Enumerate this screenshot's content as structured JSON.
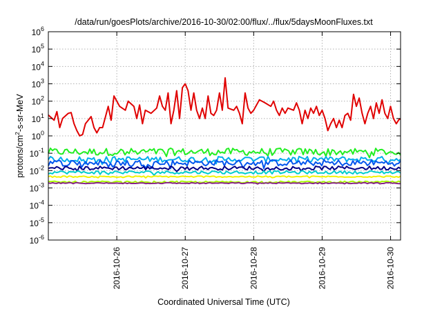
{
  "chart_data": {
    "type": "line",
    "title": "/data/run/goesPlots/archive/2016-10-30/02:00/flux/../flux/5daysMoonFluxes.txt",
    "xlabel": "Coordinated Universal Time (UTC)",
    "ylabel_parts": [
      "protons/cm",
      "2",
      "-s-sr-MeV"
    ],
    "y_scale": "log",
    "ylim_exponents": [
      -6,
      6
    ],
    "ytick_exponents": [
      -6,
      -5,
      -4,
      -3,
      -2,
      -1,
      0,
      1,
      2,
      3,
      4,
      5,
      6
    ],
    "ytick_base": "10",
    "xlim": [
      "2016-10-25T00:00",
      "2016-10-30T03:30"
    ],
    "xticks": [
      "2016-10-26",
      "2016-10-27",
      "2016-10-28",
      "2016-10-29",
      "2016-10-30"
    ],
    "grid": true,
    "legend": "none",
    "series": [
      {
        "color": "#e00000",
        "level": 20,
        "spread": 1.0,
        "points": [
          [
            "2016-10-25T00:00",
            16
          ],
          [
            "2016-10-25T02:00",
            8
          ],
          [
            "2016-10-25T03:00",
            25
          ],
          [
            "2016-10-25T04:00",
            3
          ],
          [
            "2016-10-25T05:00",
            10
          ],
          [
            "2016-10-25T07:00",
            20
          ],
          [
            "2016-10-25T08:00",
            22
          ],
          [
            "2016-10-25T09:00",
            5
          ],
          [
            "2016-10-25T10:00",
            2
          ],
          [
            "2016-10-25T11:00",
            1
          ],
          [
            "2016-10-25T12:00",
            1.2
          ],
          [
            "2016-10-25T13:00",
            5
          ],
          [
            "2016-10-25T15:00",
            13
          ],
          [
            "2016-10-25T16:00",
            3
          ],
          [
            "2016-10-25T17:00",
            1.5
          ],
          [
            "2016-10-25T18:00",
            3
          ],
          [
            "2016-10-25T19:00",
            3
          ],
          [
            "2016-10-25T20:00",
            12
          ],
          [
            "2016-10-25T21:00",
            50
          ],
          [
            "2016-10-25T22:00",
            8
          ],
          [
            "2016-10-25T23:00",
            200
          ],
          [
            "2016-10-26T01:00",
            50
          ],
          [
            "2016-10-26T03:00",
            30
          ],
          [
            "2016-10-26T04:00",
            100
          ],
          [
            "2016-10-26T06:00",
            50
          ],
          [
            "2016-10-26T07:00",
            10
          ],
          [
            "2016-10-26T08:00",
            60
          ],
          [
            "2016-10-26T09:00",
            5
          ],
          [
            "2016-10-26T10:00",
            30
          ],
          [
            "2016-10-26T12:00",
            20
          ],
          [
            "2016-10-26T14:00",
            40
          ],
          [
            "2016-10-26T15:00",
            200
          ],
          [
            "2016-10-26T16:00",
            50
          ],
          [
            "2016-10-26T17:00",
            30
          ],
          [
            "2016-10-26T18:00",
            300
          ],
          [
            "2016-10-26T19:00",
            5
          ],
          [
            "2016-10-26T20:00",
            30
          ],
          [
            "2016-10-26T21:00",
            400
          ],
          [
            "2016-10-26T22:00",
            10
          ],
          [
            "2016-10-26T23:00",
            600
          ],
          [
            "2016-10-27T00:00",
            1000
          ],
          [
            "2016-10-27T01:00",
            400
          ],
          [
            "2016-10-27T02:00",
            30
          ],
          [
            "2016-10-27T03:00",
            300
          ],
          [
            "2016-10-27T04:00",
            30
          ],
          [
            "2016-10-27T05:00",
            10
          ],
          [
            "2016-10-27T06:00",
            40
          ],
          [
            "2016-10-27T07:00",
            10
          ],
          [
            "2016-10-27T08:00",
            200
          ],
          [
            "2016-10-27T09:00",
            20
          ],
          [
            "2016-10-27T10:00",
            15
          ],
          [
            "2016-10-27T11:00",
            30
          ],
          [
            "2016-10-27T12:00",
            300
          ],
          [
            "2016-10-27T13:00",
            30
          ],
          [
            "2016-10-27T14:00",
            2200
          ],
          [
            "2016-10-27T15:00",
            40
          ],
          [
            "2016-10-27T17:00",
            30
          ],
          [
            "2016-10-27T18:00",
            50
          ],
          [
            "2016-10-27T19:00",
            20
          ],
          [
            "2016-10-27T20:00",
            5
          ],
          [
            "2016-10-27T21:00",
            300
          ],
          [
            "2016-10-27T22:00",
            40
          ],
          [
            "2016-10-27T23:00",
            20
          ],
          [
            "2016-10-28T00:00",
            30
          ],
          [
            "2016-10-28T02:00",
            120
          ],
          [
            "2016-10-28T04:00",
            80
          ],
          [
            "2016-10-28T06:00",
            50
          ],
          [
            "2016-10-28T07:00",
            100
          ],
          [
            "2016-10-28T08:00",
            30
          ],
          [
            "2016-10-28T09:00",
            15
          ],
          [
            "2016-10-28T10:00",
            40
          ],
          [
            "2016-10-28T11:00",
            20
          ],
          [
            "2016-10-28T12:00",
            40
          ],
          [
            "2016-10-28T14:00",
            30
          ],
          [
            "2016-10-28T15:00",
            80
          ],
          [
            "2016-10-28T16:00",
            30
          ],
          [
            "2016-10-28T17:00",
            5
          ],
          [
            "2016-10-28T18:00",
            30
          ],
          [
            "2016-10-28T19:00",
            10
          ],
          [
            "2016-10-28T20:00",
            40
          ],
          [
            "2016-10-28T21:00",
            20
          ],
          [
            "2016-10-28T22:00",
            50
          ],
          [
            "2016-10-28T23:00",
            15
          ],
          [
            "2016-10-29T00:00",
            30
          ],
          [
            "2016-10-29T01:00",
            10
          ],
          [
            "2016-10-29T02:00",
            2
          ],
          [
            "2016-10-29T03:00",
            5
          ],
          [
            "2016-10-29T04:00",
            10
          ],
          [
            "2016-10-29T05:00",
            3
          ],
          [
            "2016-10-29T06:00",
            8
          ],
          [
            "2016-10-29T07:00",
            3
          ],
          [
            "2016-10-29T08:00",
            15
          ],
          [
            "2016-10-29T09:00",
            20
          ],
          [
            "2016-10-29T10:00",
            8
          ],
          [
            "2016-10-29T11:00",
            250
          ],
          [
            "2016-10-29T12:00",
            50
          ],
          [
            "2016-10-29T13:00",
            150
          ],
          [
            "2016-10-29T14:00",
            20
          ],
          [
            "2016-10-29T15:00",
            5
          ],
          [
            "2016-10-29T16:00",
            20
          ],
          [
            "2016-10-29T17:00",
            50
          ],
          [
            "2016-10-29T18:00",
            10
          ],
          [
            "2016-10-29T19:00",
            80
          ],
          [
            "2016-10-29T20:00",
            20
          ],
          [
            "2016-10-29T21:00",
            120
          ],
          [
            "2016-10-29T22:00",
            20
          ],
          [
            "2016-10-29T23:00",
            10
          ],
          [
            "2016-10-30T00:00",
            50
          ],
          [
            "2016-10-30T01:00",
            10
          ],
          [
            "2016-10-30T02:00",
            5
          ],
          [
            "2016-10-30T03:00",
            9
          ],
          [
            "2016-10-30T03:30",
            9
          ]
        ]
      },
      {
        "color": "#22ee22",
        "level": 0.12,
        "spread": 0.42
      },
      {
        "color": "#00aaee",
        "level": 0.045,
        "spread": 0.32
      },
      {
        "color": "#0055ee",
        "level": 0.028,
        "spread": 0.36
      },
      {
        "color": "#000088",
        "level": 0.014,
        "spread": 0.22
      },
      {
        "color": "#00cccc",
        "level": 0.008,
        "spread": 0.18
      },
      {
        "color": "#f2f200",
        "level": 0.0045,
        "spread": 0.08
      },
      {
        "color": "#aaff00",
        "level": 0.0022,
        "spread": 0.1
      },
      {
        "color": "#882288",
        "level": 0.0019,
        "spread": 0.06
      }
    ]
  }
}
